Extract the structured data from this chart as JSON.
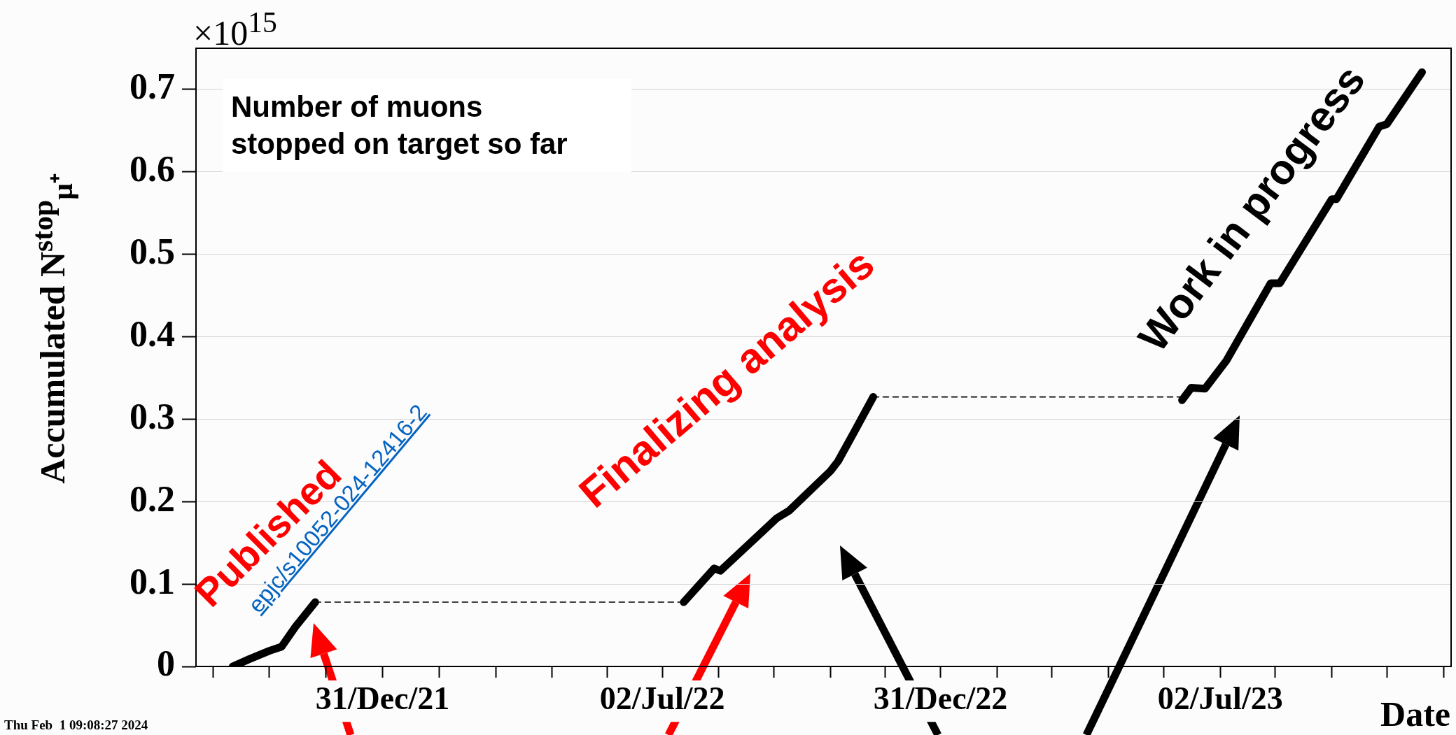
{
  "chart_data": {
    "type": "line",
    "xlabel": "Date",
    "ylabel": "Accumulated  N$^{stop}$$_{μ⁺}$",
    "annotations": [
      "×10$^{15}$",
      "Number of muons\nstopped on target so far",
      "Published",
      "epjc/s10052-024-12416-2",
      "Finalizing analysis",
      "Work in progress",
      "Thu Feb  1 09:08:27 2024"
    ],
    "series": [
      {
        "color": "#000000",
        "x": [
          "2021-09-24",
          "2021-10-05",
          "2021-10-18",
          "2021-10-26",
          "2021-11-04",
          "2021-11-17"
        ],
        "values": [
          0,
          0.009,
          0.019,
          0.024,
          0.048,
          0.078
        ]
      },
      {
        "color": "#000000",
        "line_style": "dashed",
        "x": [
          "2021-11-17",
          "2022-07-16"
        ],
        "values": [
          0.078,
          0.078
        ]
      },
      {
        "color": "#000000",
        "x": [
          "2022-07-16",
          "2022-08-05",
          "2022-08-09",
          "2022-09-15",
          "2022-09-23",
          "2022-10-20",
          "2022-10-25",
          "2022-11-05",
          "2022-11-17"
        ],
        "values": [
          0.078,
          0.119,
          0.116,
          0.18,
          0.189,
          0.237,
          0.249,
          0.286,
          0.327
        ]
      },
      {
        "color": "#000000",
        "line_style": "dashed",
        "x": [
          "2022-11-17",
          "2023-06-07"
        ],
        "values": [
          0.327,
          0.327
        ]
      },
      {
        "color": "#000000",
        "x": [
          "2023-06-07",
          "2023-06-13",
          "2023-06-22",
          "2023-07-06",
          "2023-08-04",
          "2023-08-10",
          "2023-09-13",
          "2023-09-16",
          "2023-10-14",
          "2023-10-19",
          "2023-11-11"
        ],
        "values": [
          0.323,
          0.338,
          0.337,
          0.371,
          0.465,
          0.465,
          0.567,
          0.567,
          0.655,
          0.658,
          0.721
        ]
      }
    ],
    "xlim": [
      "2021-08-31",
      "2023-11-30"
    ],
    "xticks": [
      {
        "value": "2021-09-11",
        "label": null
      },
      {
        "value": "2021-10-18",
        "label": null
      },
      {
        "value": "2021-11-24",
        "label": null
      },
      {
        "value": "2021-12-31",
        "label": "31/Dec/21"
      },
      {
        "value": "2022-02-06",
        "label": null
      },
      {
        "value": "2022-03-15",
        "label": null
      },
      {
        "value": "2022-04-21",
        "label": null
      },
      {
        "value": "2022-05-27",
        "label": null
      },
      {
        "value": "2022-07-02",
        "label": "02/Jul/22"
      },
      {
        "value": "2022-08-08",
        "label": null
      },
      {
        "value": "2022-09-13",
        "label": null
      },
      {
        "value": "2022-10-20",
        "label": null
      },
      {
        "value": "2022-11-25",
        "label": null
      },
      {
        "value": "2022-12-31",
        "label": "31/Dec/22"
      },
      {
        "value": "2023-02-06",
        "label": null
      },
      {
        "value": "2023-03-14",
        "label": null
      },
      {
        "value": "2023-04-20",
        "label": null
      },
      {
        "value": "2023-05-26",
        "label": null
      },
      {
        "value": "2023-07-02",
        "label": "02/Jul/23"
      },
      {
        "value": "2023-08-07",
        "label": null
      },
      {
        "value": "2023-09-13",
        "label": null
      },
      {
        "value": "2023-10-19",
        "label": null
      },
      {
        "value": "2023-11-25",
        "label": null
      }
    ],
    "ylim": [
      0,
      0.75
    ],
    "yticks": [
      0,
      0.1,
      0.2,
      0.3,
      0.4,
      0.5,
      0.6,
      0.7
    ],
    "grid": "y",
    "legend": false,
    "marker": "none",
    "line_style": "solid"
  }
}
